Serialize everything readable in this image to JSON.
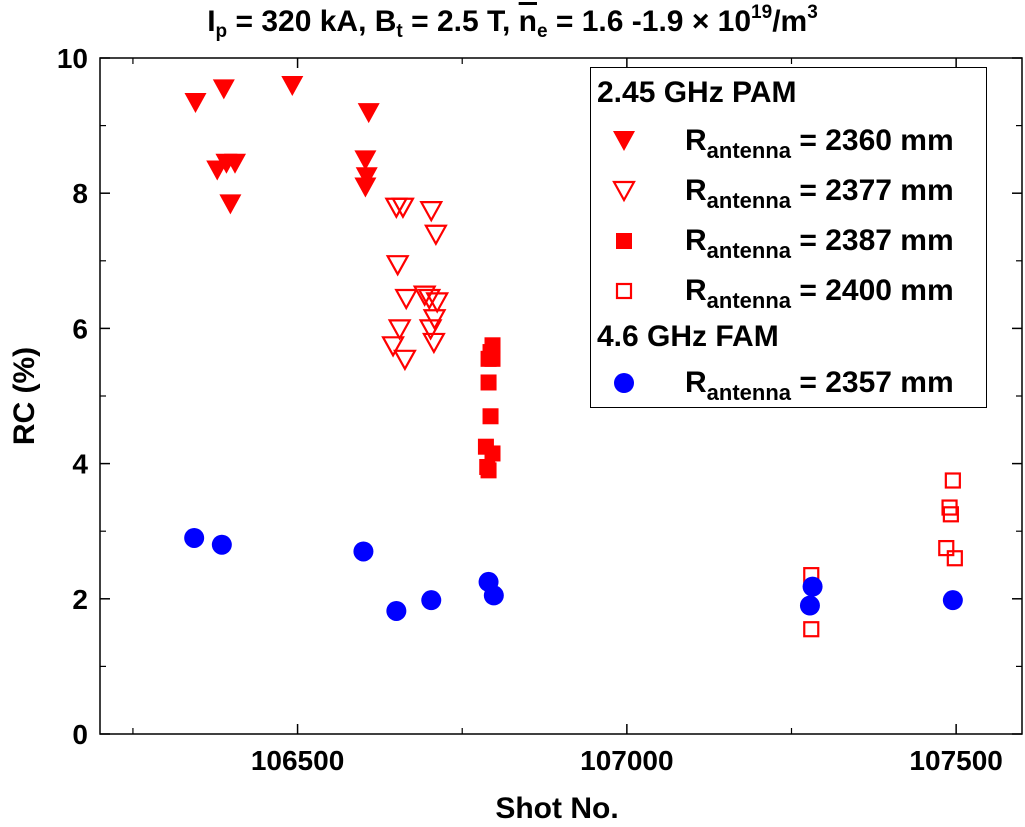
{
  "title": {
    "ip_label": "I",
    "ip_sub": "p",
    "ip_value": " = 320 kA, B",
    "bt_sub": "t",
    "bt_value": " = 2.5 T, ",
    "ne_label": "n",
    "ne_sub": "e",
    "ne_value": " = 1.6 -1.9 × 10",
    "ne_exp": "19",
    "unit": "/m",
    "unit_exp": "3"
  },
  "legend": {
    "group1": "2.45 GHz PAM",
    "group2": "4.6 GHz FAM",
    "r_label": "R",
    "r_sub": "antenna",
    "entries": [
      {
        "value": " = 2360 mm",
        "marker": "triangle-down-filled",
        "color": "#ff0000"
      },
      {
        "value": " = 2377 mm",
        "marker": "triangle-down-open",
        "color": "#ff0000"
      },
      {
        "value": " = 2387 mm",
        "marker": "square-filled",
        "color": "#ff0000"
      },
      {
        "value": " = 2400 mm",
        "marker": "square-open",
        "color": "#ff0000"
      },
      {
        "value": " = 2357 mm",
        "marker": "circle-filled",
        "color": "#0000ff"
      }
    ]
  },
  "chart_data": {
    "type": "scatter",
    "xlabel": "Shot No.",
    "ylabel": "RC (%)",
    "xlim": [
      106200,
      107600
    ],
    "ylim": [
      0,
      10
    ],
    "xticks": [
      106500,
      107000,
      107500
    ],
    "yticks": [
      0,
      2,
      4,
      6,
      8,
      10
    ],
    "legend_position": "top-right",
    "grid": false,
    "series": [
      {
        "name": "PAM R_antenna = 2360 mm",
        "marker": "triangle-down-filled",
        "color": "#ff0000",
        "points": [
          [
            106345,
            9.35
          ],
          [
            106388,
            9.55
          ],
          [
            106378,
            8.35
          ],
          [
            106392,
            8.45
          ],
          [
            106405,
            8.45
          ],
          [
            106398,
            7.85
          ],
          [
            106492,
            9.6
          ],
          [
            106608,
            9.2
          ],
          [
            106603,
            8.5
          ],
          [
            106605,
            8.25
          ],
          [
            106603,
            8.1
          ]
        ]
      },
      {
        "name": "PAM R_antenna = 2377 mm",
        "marker": "triangle-down-open",
        "color": "#ff0000",
        "points": [
          [
            106650,
            7.8
          ],
          [
            106660,
            7.8
          ],
          [
            106703,
            7.75
          ],
          [
            106710,
            7.4
          ],
          [
            106652,
            6.95
          ],
          [
            106665,
            6.45
          ],
          [
            106693,
            6.5
          ],
          [
            106700,
            6.45
          ],
          [
            106712,
            6.4
          ],
          [
            106708,
            6.15
          ],
          [
            106702,
            6.0
          ],
          [
            106655,
            6.0
          ],
          [
            106645,
            5.75
          ],
          [
            106707,
            5.8
          ],
          [
            106663,
            5.55
          ]
        ]
      },
      {
        "name": "PAM R_antenna = 2387 mm",
        "marker": "square-filled",
        "color": "#ff0000",
        "points": [
          [
            106796,
            5.75
          ],
          [
            106793,
            5.65
          ],
          [
            106790,
            5.55
          ],
          [
            106796,
            5.55
          ],
          [
            106790,
            5.2
          ],
          [
            106793,
            4.7
          ],
          [
            106786,
            4.25
          ],
          [
            106796,
            4.15
          ],
          [
            106788,
            3.95
          ],
          [
            106790,
            3.9
          ]
        ]
      },
      {
        "name": "PAM R_antenna = 2400 mm",
        "marker": "square-open",
        "color": "#ff0000",
        "points": [
          [
            107280,
            2.35
          ],
          [
            107280,
            1.55
          ],
          [
            107495,
            3.75
          ],
          [
            107490,
            3.35
          ],
          [
            107492,
            3.25
          ],
          [
            107485,
            2.75
          ],
          [
            107498,
            2.6
          ]
        ]
      },
      {
        "name": "FAM R_antenna = 2357 mm",
        "marker": "circle-filled",
        "color": "#0000ff",
        "points": [
          [
            106343,
            2.9
          ],
          [
            106385,
            2.8
          ],
          [
            106600,
            2.7
          ],
          [
            106650,
            1.82
          ],
          [
            106703,
            1.98
          ],
          [
            106790,
            2.25
          ],
          [
            106798,
            2.05
          ],
          [
            107282,
            2.18
          ],
          [
            107278,
            1.9
          ],
          [
            107495,
            1.98
          ]
        ]
      }
    ]
  }
}
